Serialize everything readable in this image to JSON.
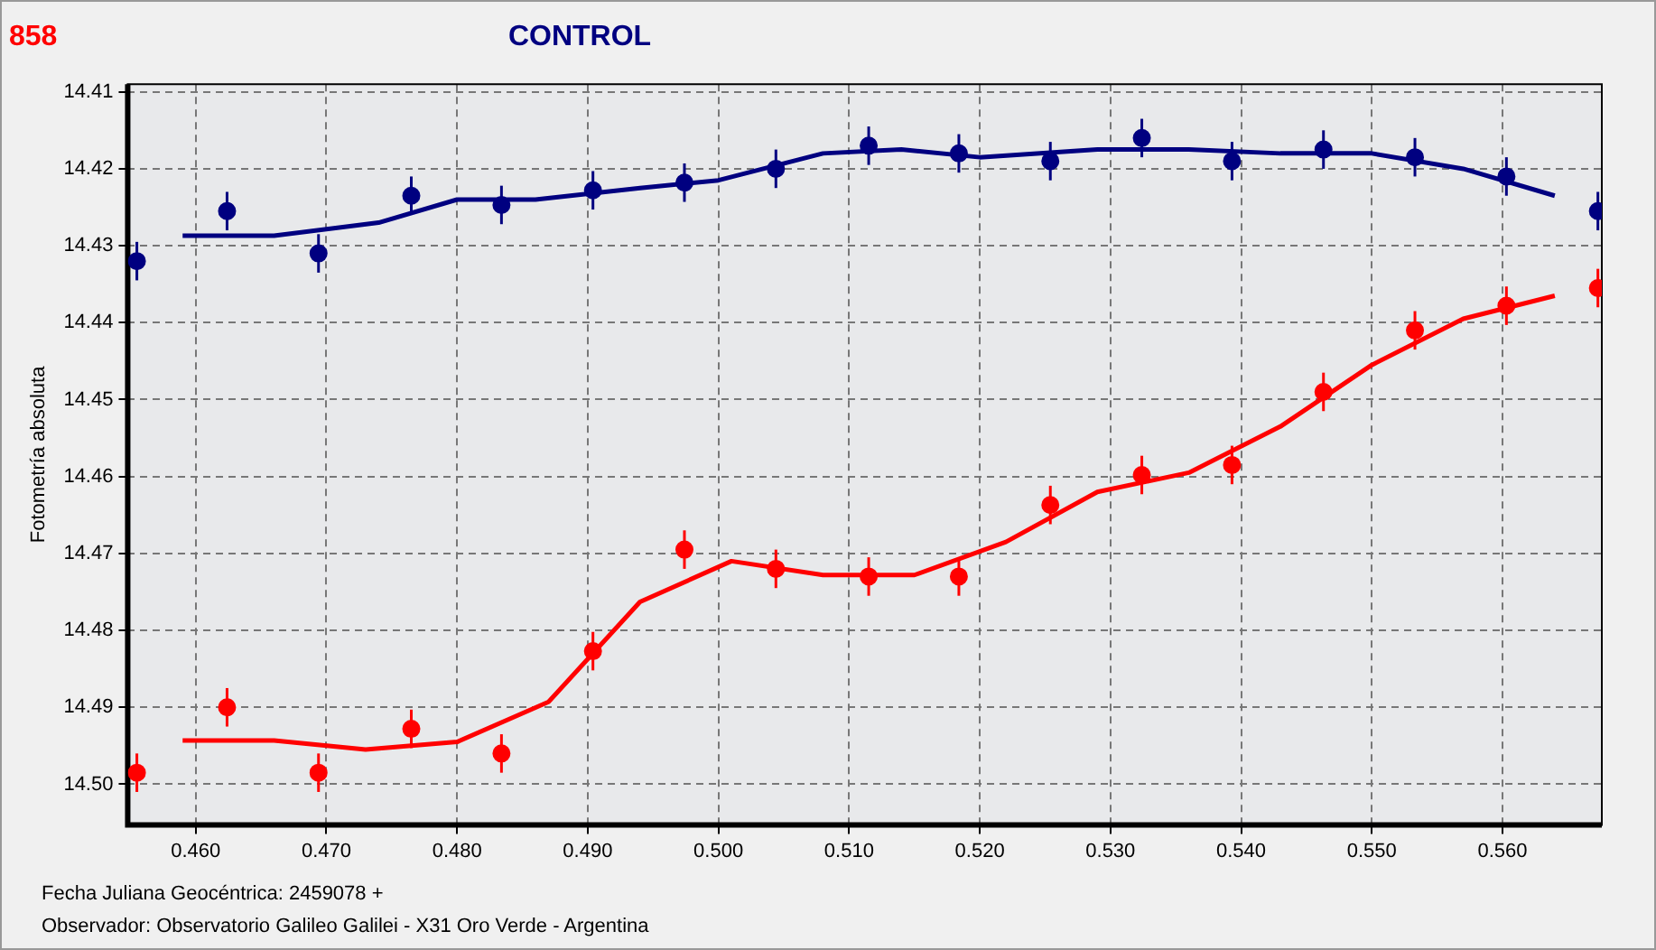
{
  "chart_data": {
    "type": "scatter",
    "title": "CONTROL",
    "xlabel": "Fecha Juliana Geocéntrica: 2459078 +",
    "ylabel": "Fotometría absoluta",
    "annotations": [
      "858",
      "Observador: Observatorio Galileo Galilei - X31 Oro Verde - Argentina"
    ],
    "x": [
      0.4555,
      0.4624,
      0.4694,
      0.4765,
      0.4834,
      0.4904,
      0.4974,
      0.5044,
      0.5115,
      0.5184,
      0.5254,
      0.5324,
      0.5393,
      0.5463,
      0.5533,
      0.5603,
      0.5673
    ],
    "series": [
      {
        "color": "#000080",
        "values": [
          14.432,
          14.4255,
          14.431,
          14.4235,
          14.4247,
          14.4228,
          14.4218,
          14.42,
          14.417,
          14.418,
          14.419,
          14.416,
          14.419,
          14.4175,
          14.4185,
          14.421,
          14.4255
        ],
        "errors": [
          0.0025,
          0.0025,
          0.0025,
          0.0025,
          0.0025,
          0.0025,
          0.0025,
          0.0025,
          0.0025,
          0.0025,
          0.0025,
          0.0025,
          0.0025,
          0.0025,
          0.0025,
          0.0025,
          0.0025
        ]
      },
      {
        "color": "#ff0000",
        "values": [
          14.4985,
          14.49,
          14.4985,
          14.4928,
          14.496,
          14.4827,
          14.4695,
          14.472,
          14.473,
          14.473,
          14.4637,
          14.4598,
          14.4585,
          14.449,
          14.441,
          14.4378,
          14.4355
        ],
        "errors": [
          0.0025,
          0.0025,
          0.0025,
          0.0025,
          0.0025,
          0.0025,
          0.0025,
          0.0025,
          0.0025,
          0.0025,
          0.0025,
          0.0025,
          0.0025,
          0.0025,
          0.0025,
          0.0025,
          0.0025
        ]
      },
      {
        "type": "line",
        "marker": "none",
        "color": "#000080",
        "x": [
          0.459,
          0.466,
          0.474,
          0.48,
          0.486,
          0.494,
          0.5,
          0.508,
          0.514,
          0.52,
          0.529,
          0.536,
          0.543,
          0.55,
          0.557,
          0.564
        ],
        "values": [
          14.4287,
          14.4287,
          14.427,
          14.424,
          14.424,
          14.4225,
          14.4215,
          14.418,
          14.4175,
          14.4185,
          14.4175,
          14.4175,
          14.418,
          14.418,
          14.42,
          14.4235
        ]
      },
      {
        "type": "line",
        "marker": "none",
        "color": "#ff0000",
        "x": [
          0.459,
          0.466,
          0.473,
          0.48,
          0.487,
          0.494,
          0.501,
          0.508,
          0.515,
          0.522,
          0.529,
          0.536,
          0.543,
          0.55,
          0.557,
          0.564
        ],
        "values": [
          14.4943,
          14.4943,
          14.4955,
          14.4945,
          14.4893,
          14.4763,
          14.471,
          14.4728,
          14.4728,
          14.4685,
          14.462,
          14.4595,
          14.4535,
          14.4455,
          14.4395,
          14.4365
        ]
      }
    ],
    "xlim": [
      0.4548,
      0.5676
    ],
    "ylim": [
      14.5053,
      14.409
    ],
    "xticks": [
      {
        "value": 0.46,
        "label": "0.460"
      },
      {
        "value": 0.47,
        "label": "0.470"
      },
      {
        "value": 0.48,
        "label": "0.480"
      },
      {
        "value": 0.49,
        "label": "0.490"
      },
      {
        "value": 0.5,
        "label": "0.500"
      },
      {
        "value": 0.51,
        "label": "0.510"
      },
      {
        "value": 0.52,
        "label": "0.520"
      },
      {
        "value": 0.53,
        "label": "0.530"
      },
      {
        "value": 0.54,
        "label": "0.540"
      },
      {
        "value": 0.55,
        "label": "0.550"
      },
      {
        "value": 0.56,
        "label": "0.560"
      }
    ],
    "yticks": [
      14.41,
      14.42,
      14.43,
      14.44,
      14.45,
      14.46,
      14.47,
      14.48,
      14.49,
      {
        "value": 14.5,
        "label": "14.50"
      }
    ],
    "grid": true,
    "legend": false,
    "marker": "circle"
  }
}
